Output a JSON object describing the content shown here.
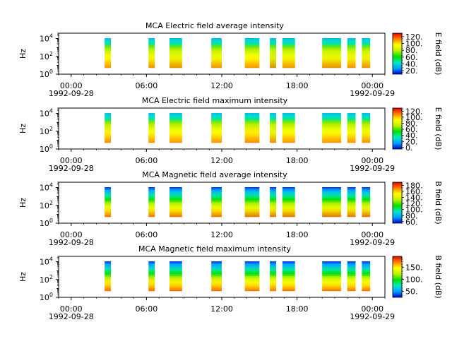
{
  "chart_data": [
    {
      "type": "heatmap",
      "title": "MCA  Electric field average intensity",
      "ylabel": "Hz",
      "y_scale": "log",
      "y_ticks": [
        "10^0",
        "10^2",
        "10^4"
      ],
      "ylim": [
        1,
        40000
      ],
      "x_ticks": [
        "00:00",
        "06:00",
        "12:00",
        "18:00",
        "00:00"
      ],
      "x_dates": [
        "1992-09-28",
        "1992-09-29"
      ],
      "xlim": [
        "1992-09-27T23:00",
        "1992-09-29T01:00"
      ],
      "colorbar": {
        "label": "E field (dB)",
        "ticks": [
          "20.",
          "40.",
          "60.",
          "80.",
          "100.",
          "120."
        ],
        "range": [
          10,
          130
        ]
      },
      "colormap": [
        "#0000d0",
        "#00a0ff",
        "#00e8c0",
        "#00e000",
        "#c0f000",
        "#ffff00",
        "#ff8000",
        "#e00000"
      ],
      "data_intervals": [
        {
          "start": "1992-09-28T02:40",
          "end": "1992-09-28T03:10",
          "level": 0.55
        },
        {
          "start": "1992-09-28T06:10",
          "end": "1992-09-28T06:40",
          "level": 0.5
        },
        {
          "start": "1992-09-28T07:50",
          "end": "1992-09-28T08:50",
          "level": 0.45
        },
        {
          "start": "1992-09-28T11:10",
          "end": "1992-09-28T12:00",
          "level": 0.5
        },
        {
          "start": "1992-09-28T13:50",
          "end": "1992-09-28T15:00",
          "level": 0.55
        },
        {
          "start": "1992-09-28T15:50",
          "end": "1992-09-28T16:20",
          "level": 0.4
        },
        {
          "start": "1992-09-28T16:50",
          "end": "1992-09-28T17:50",
          "level": 0.5
        },
        {
          "start": "1992-09-28T20:00",
          "end": "1992-09-28T21:30",
          "level": 0.45
        },
        {
          "start": "1992-09-28T22:00",
          "end": "1992-09-28T22:40",
          "level": 0.5
        },
        {
          "start": "1992-09-28T23:10",
          "end": "1992-09-28T23:50",
          "level": 0.45
        }
      ]
    },
    {
      "type": "heatmap",
      "title": "MCA  Electric field maximum intensity",
      "ylabel": "Hz",
      "y_scale": "log",
      "y_ticks": [
        "10^0",
        "10^2",
        "10^4"
      ],
      "ylim": [
        1,
        40000
      ],
      "x_ticks": [
        "00:00",
        "06:00",
        "12:00",
        "18:00",
        "00:00"
      ],
      "x_dates": [
        "1992-09-28",
        "1992-09-29"
      ],
      "xlim": [
        "1992-09-27T23:00",
        "1992-09-29T01:00"
      ],
      "colorbar": {
        "label": "E field (dB)",
        "ticks": [
          "0.",
          "20.",
          "40.",
          "60.",
          "80.",
          "100.",
          "120."
        ],
        "range": [
          -5,
          130
        ]
      },
      "colormap": [
        "#0000d0",
        "#00a0ff",
        "#00e8c0",
        "#00e000",
        "#c0f000",
        "#ffff00",
        "#ff8000",
        "#e00000"
      ],
      "data_intervals": [
        {
          "start": "1992-09-28T02:40",
          "end": "1992-09-28T03:10",
          "level": 0.6
        },
        {
          "start": "1992-09-28T06:10",
          "end": "1992-09-28T06:40",
          "level": 0.55
        },
        {
          "start": "1992-09-28T07:50",
          "end": "1992-09-28T08:50",
          "level": 0.55
        },
        {
          "start": "1992-09-28T11:10",
          "end": "1992-09-28T12:00",
          "level": 0.55
        },
        {
          "start": "1992-09-28T13:50",
          "end": "1992-09-28T15:00",
          "level": 0.6
        },
        {
          "start": "1992-09-28T15:50",
          "end": "1992-09-28T16:20",
          "level": 0.45
        },
        {
          "start": "1992-09-28T16:50",
          "end": "1992-09-28T17:50",
          "level": 0.55
        },
        {
          "start": "1992-09-28T20:00",
          "end": "1992-09-28T21:30",
          "level": 0.55
        },
        {
          "start": "1992-09-28T22:00",
          "end": "1992-09-28T22:40",
          "level": 0.55
        },
        {
          "start": "1992-09-28T23:10",
          "end": "1992-09-28T23:50",
          "level": 0.5
        }
      ]
    },
    {
      "type": "heatmap",
      "title": "MCA  Magnetic field average intensity",
      "ylabel": "Hz",
      "y_scale": "log",
      "y_ticks": [
        "10^0",
        "10^2",
        "10^4"
      ],
      "ylim": [
        1,
        40000
      ],
      "x_ticks": [
        "00:00",
        "06:00",
        "12:00",
        "18:00",
        "00:00"
      ],
      "x_dates": [
        "1992-09-28",
        "1992-09-29"
      ],
      "xlim": [
        "1992-09-27T23:00",
        "1992-09-29T01:00"
      ],
      "colorbar": {
        "label": "B field (dB)",
        "ticks": [
          "60.",
          "80.",
          "100.",
          "120.",
          "140.",
          "160.",
          "180."
        ],
        "range": [
          55,
          190
        ]
      },
      "colormap": [
        "#0000d0",
        "#00a0ff",
        "#00e8c0",
        "#00e000",
        "#c0f000",
        "#ffff00",
        "#ff8000",
        "#e00000"
      ],
      "data_intervals": [
        {
          "start": "1992-09-28T02:40",
          "end": "1992-09-28T03:10",
          "level": 0.5
        },
        {
          "start": "1992-09-28T06:10",
          "end": "1992-09-28T06:40",
          "level": 0.5
        },
        {
          "start": "1992-09-28T07:50",
          "end": "1992-09-28T08:50",
          "level": 0.5
        },
        {
          "start": "1992-09-28T11:10",
          "end": "1992-09-28T12:00",
          "level": 0.5
        },
        {
          "start": "1992-09-28T13:50",
          "end": "1992-09-28T15:00",
          "level": 0.45
        },
        {
          "start": "1992-09-28T15:50",
          "end": "1992-09-28T16:20",
          "level": 0.45
        },
        {
          "start": "1992-09-28T16:50",
          "end": "1992-09-28T17:50",
          "level": 0.45
        },
        {
          "start": "1992-09-28T20:00",
          "end": "1992-09-28T21:30",
          "level": 0.45
        },
        {
          "start": "1992-09-28T22:00",
          "end": "1992-09-28T22:40",
          "level": 0.45
        },
        {
          "start": "1992-09-28T23:10",
          "end": "1992-09-28T23:50",
          "level": 0.45
        }
      ]
    },
    {
      "type": "heatmap",
      "title": "MCA  Magnetic field maximum intensity",
      "ylabel": "Hz",
      "y_scale": "log",
      "y_ticks": [
        "10^0",
        "10^2",
        "10^4"
      ],
      "ylim": [
        1,
        40000
      ],
      "x_ticks": [
        "00:00",
        "06:00",
        "12:00",
        "18:00",
        "00:00"
      ],
      "x_dates": [
        "1992-09-28",
        "1992-09-29"
      ],
      "xlim": [
        "1992-09-27T23:00",
        "1992-09-29T01:00"
      ],
      "colorbar": {
        "label": "B field (dB)",
        "ticks": [
          "50.",
          "100.",
          "150."
        ],
        "range": [
          25,
          195
        ]
      },
      "colormap": [
        "#0000d0",
        "#00a0ff",
        "#00e8c0",
        "#00e000",
        "#c0f000",
        "#ffff00",
        "#ff8000",
        "#e00000"
      ],
      "data_intervals": [
        {
          "start": "1992-09-28T02:40",
          "end": "1992-09-28T03:10",
          "level": 0.6
        },
        {
          "start": "1992-09-28T06:10",
          "end": "1992-09-28T06:40",
          "level": 0.6
        },
        {
          "start": "1992-09-28T07:50",
          "end": "1992-09-28T08:50",
          "level": 0.6
        },
        {
          "start": "1992-09-28T11:10",
          "end": "1992-09-28T12:00",
          "level": 0.6
        },
        {
          "start": "1992-09-28T13:50",
          "end": "1992-09-28T15:00",
          "level": 0.55
        },
        {
          "start": "1992-09-28T15:50",
          "end": "1992-09-28T16:20",
          "level": 0.55
        },
        {
          "start": "1992-09-28T16:50",
          "end": "1992-09-28T17:50",
          "level": 0.55
        },
        {
          "start": "1992-09-28T20:00",
          "end": "1992-09-28T21:30",
          "level": 0.55
        },
        {
          "start": "1992-09-28T22:00",
          "end": "1992-09-28T22:40",
          "level": 0.55
        },
        {
          "start": "1992-09-28T23:10",
          "end": "1992-09-28T23:50",
          "level": 0.55
        }
      ]
    }
  ]
}
